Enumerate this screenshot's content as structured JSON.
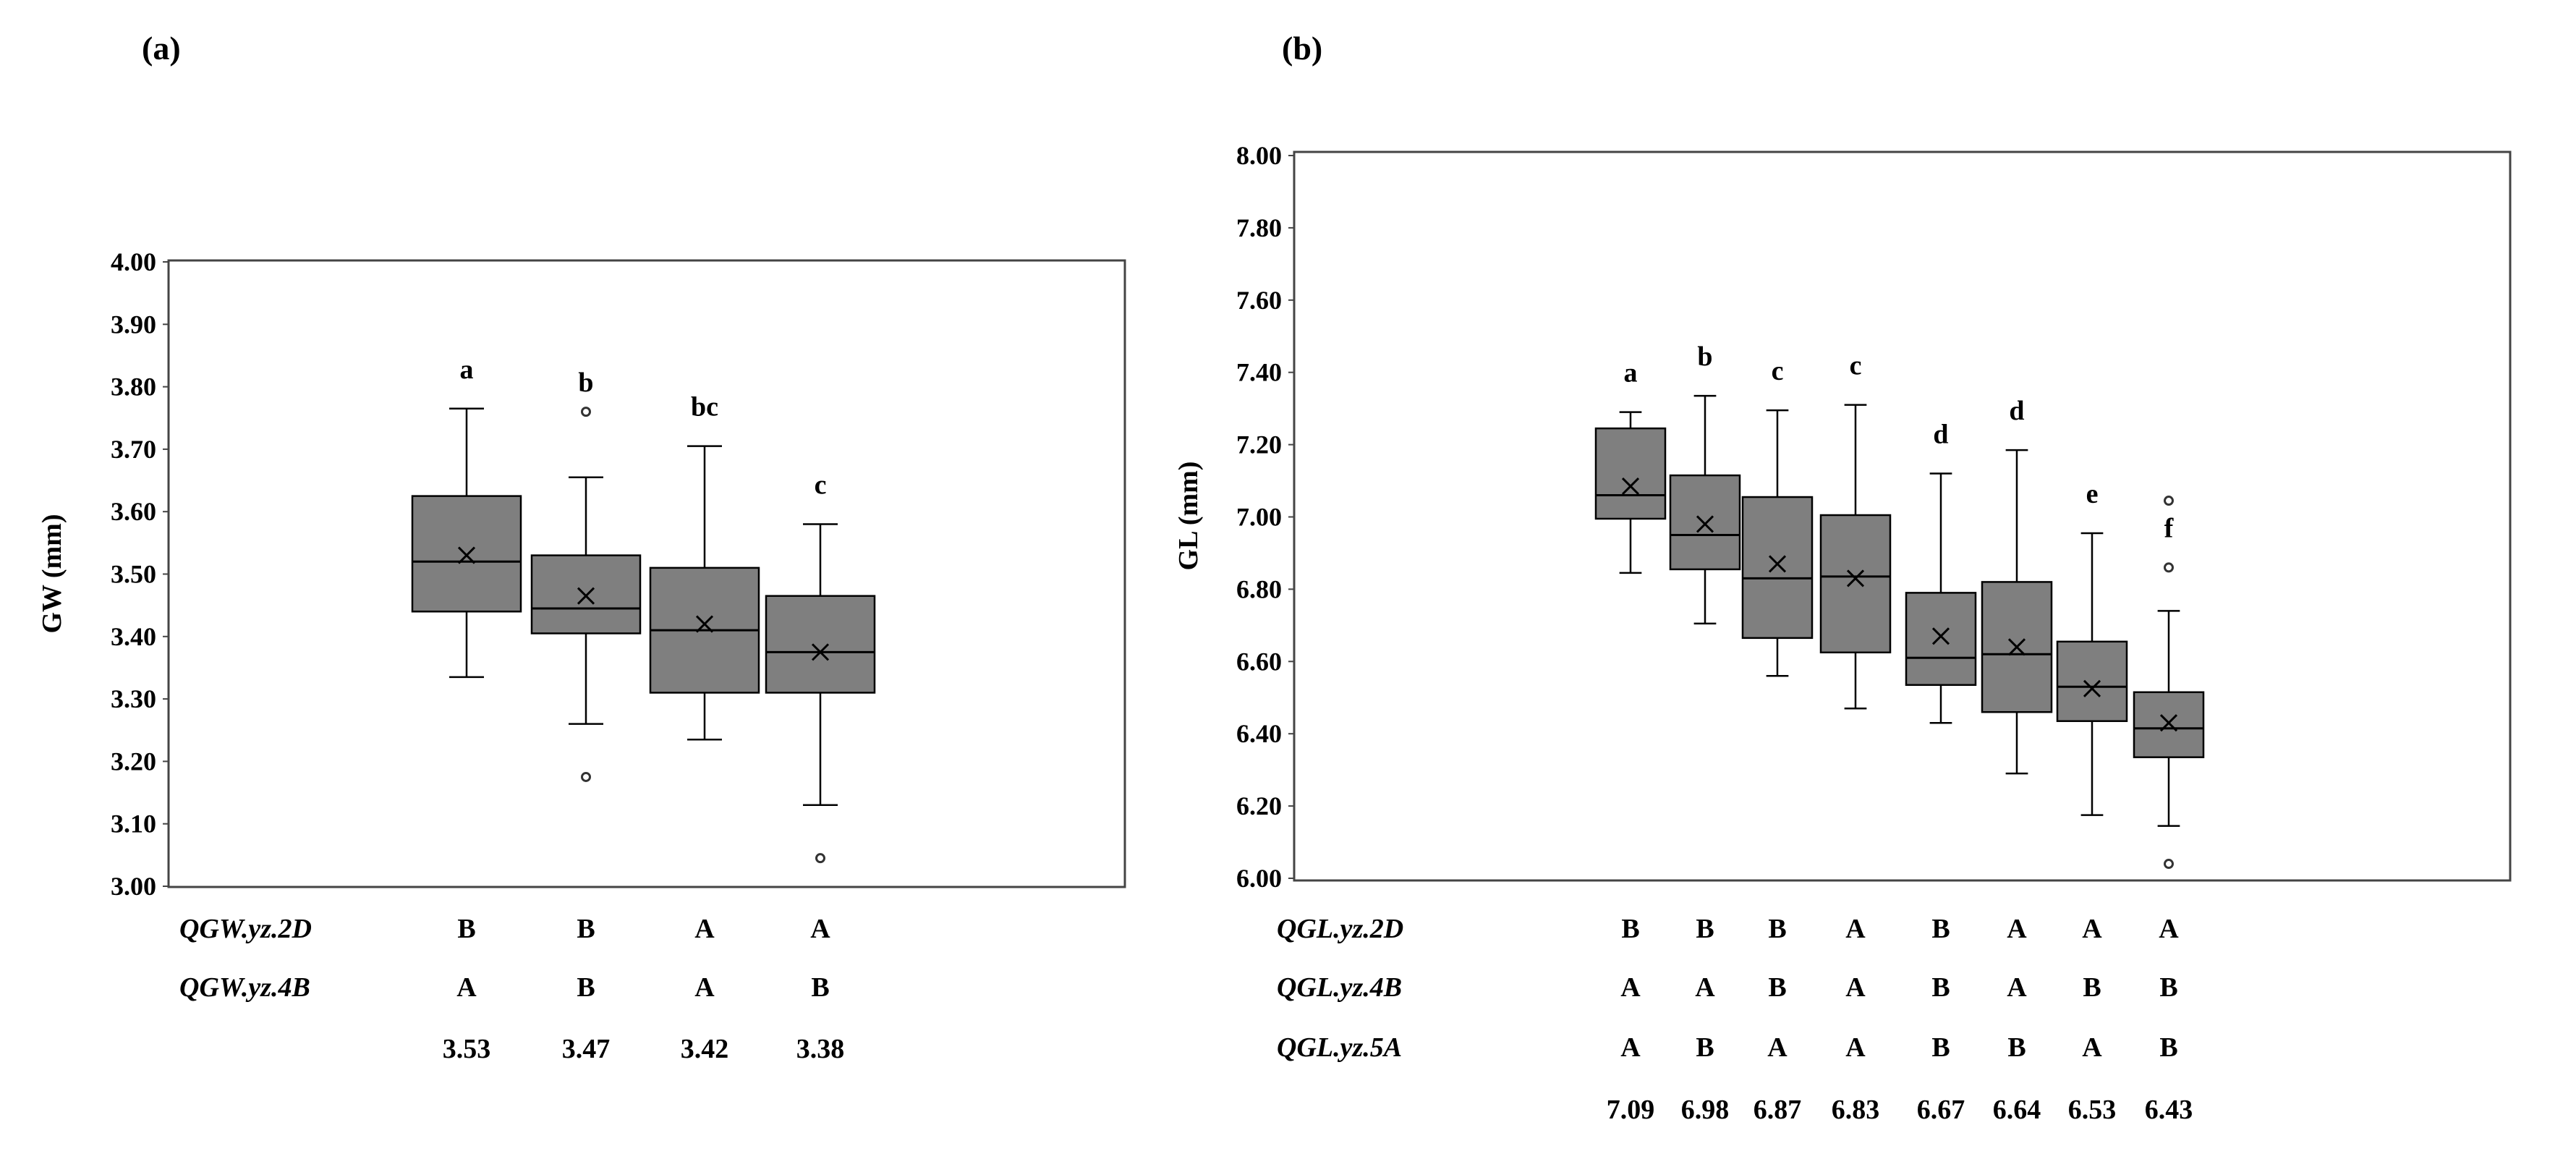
{
  "chart_data": [
    {
      "type": "box",
      "panel_label": "(a)",
      "ylabel": "GW (mm)",
      "ylim": [
        3.0,
        4.0
      ],
      "yticks": [
        "3.00",
        "3.10",
        "3.20",
        "3.30",
        "3.40",
        "3.50",
        "3.60",
        "3.70",
        "3.80",
        "3.90",
        "4.00"
      ],
      "boxes": [
        {
          "q1": 3.44,
          "median": 3.52,
          "q3": 3.625,
          "whisker_low": 3.335,
          "whisker_high": 3.765,
          "mean": 3.53,
          "outliers": [],
          "letter": "a"
        },
        {
          "q1": 3.405,
          "median": 3.445,
          "q3": 3.53,
          "whisker_low": 3.26,
          "whisker_high": 3.655,
          "mean": 3.465,
          "outliers": [
            3.76,
            3.175
          ],
          "letter": "b"
        },
        {
          "q1": 3.31,
          "median": 3.41,
          "q3": 3.51,
          "whisker_low": 3.235,
          "whisker_high": 3.705,
          "mean": 3.42,
          "outliers": [],
          "letter": "bc"
        },
        {
          "q1": 3.31,
          "median": 3.375,
          "q3": 3.465,
          "whisker_low": 3.13,
          "whisker_high": 3.58,
          "mean": 3.375,
          "outliers": [
            3.045
          ],
          "letter": "c"
        }
      ],
      "table": {
        "rows": [
          {
            "label": "QGW.yz.2D",
            "values": [
              "B",
              "B",
              "A",
              "A"
            ]
          },
          {
            "label": "QGW.yz.4B",
            "values": [
              "A",
              "B",
              "A",
              "B"
            ]
          }
        ],
        "means": [
          "3.53",
          "3.47",
          "3.42",
          "3.38"
        ]
      }
    },
    {
      "type": "box",
      "panel_label": "(b)",
      "ylabel": "GL (mm)",
      "ylim": [
        6.0,
        8.0
      ],
      "yticks": [
        "6.00",
        "6.20",
        "6.40",
        "6.60",
        "6.80",
        "7.00",
        "7.20",
        "7.40",
        "7.60",
        "7.80",
        "8.00"
      ],
      "boxes": [
        {
          "q1": 6.995,
          "median": 7.06,
          "q3": 7.245,
          "whisker_low": 6.845,
          "whisker_high": 7.29,
          "mean": 7.085,
          "outliers": [],
          "letter": "a"
        },
        {
          "q1": 6.855,
          "median": 6.95,
          "q3": 7.115,
          "whisker_low": 6.705,
          "whisker_high": 7.335,
          "mean": 6.98,
          "outliers": [],
          "letter": "b"
        },
        {
          "q1": 6.665,
          "median": 6.83,
          "q3": 7.055,
          "whisker_low": 6.56,
          "whisker_high": 7.295,
          "mean": 6.87,
          "outliers": [],
          "letter": "c"
        },
        {
          "q1": 6.625,
          "median": 6.835,
          "q3": 7.005,
          "whisker_low": 6.47,
          "whisker_high": 7.31,
          "mean": 6.83,
          "outliers": [],
          "letter": "c"
        },
        {
          "q1": 6.535,
          "median": 6.61,
          "q3": 6.79,
          "whisker_low": 6.43,
          "whisker_high": 7.12,
          "mean": 6.67,
          "outliers": [],
          "letter": "d"
        },
        {
          "q1": 6.46,
          "median": 6.62,
          "q3": 6.82,
          "whisker_low": 6.29,
          "whisker_high": 7.185,
          "mean": 6.64,
          "outliers": [],
          "letter": "d"
        },
        {
          "q1": 6.435,
          "median": 6.53,
          "q3": 6.655,
          "whisker_low": 6.175,
          "whisker_high": 6.955,
          "mean": 6.525,
          "outliers": [],
          "letter": "e"
        },
        {
          "q1": 6.335,
          "median": 6.415,
          "q3": 6.515,
          "whisker_low": 6.145,
          "whisker_high": 6.74,
          "mean": 6.43,
          "outliers": [
            7.045,
            6.86,
            6.04
          ],
          "letter": "f"
        }
      ],
      "table": {
        "rows": [
          {
            "label": "QGL.yz.2D",
            "values": [
              "B",
              "B",
              "B",
              "A",
              "B",
              "A",
              "A",
              "A"
            ]
          },
          {
            "label": "QGL.yz.4B",
            "values": [
              "A",
              "A",
              "B",
              "A",
              "B",
              "A",
              "B",
              "B"
            ]
          },
          {
            "label": "QGL.yz.5A",
            "values": [
              "A",
              "B",
              "A",
              "A",
              "B",
              "B",
              "A",
              "B"
            ]
          }
        ],
        "means": [
          "7.09",
          "6.98",
          "6.87",
          "6.83",
          "6.67",
          "6.64",
          "6.53",
          "6.43"
        ]
      }
    }
  ],
  "colors": {
    "box_fill": "#7f7f7f",
    "line": "#000000",
    "frame": "#444444",
    "background": "#ffffff"
  }
}
